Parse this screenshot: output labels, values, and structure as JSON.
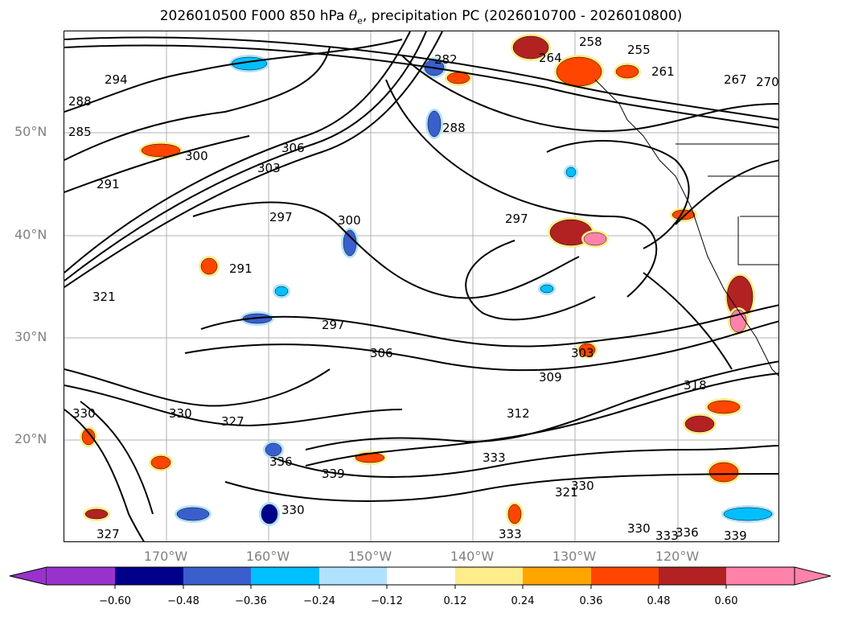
{
  "title": {
    "prefix": "2026010500 F000 850 hPa ",
    "symbol": "θ",
    "sub": "e",
    "suffix": ", precipitation PC (2026010700 - 2026010800)"
  },
  "lat_labels": [
    "50°N",
    "40°N",
    "30°N",
    "20°N"
  ],
  "lon_labels": [
    "170°W",
    "160°W",
    "150°W",
    "140°W",
    "130°W",
    "120°W"
  ],
  "colorbar": {
    "ticks": [
      "−0.60",
      "−0.48",
      "−0.36",
      "−0.24",
      "−0.12",
      "0.12",
      "0.24",
      "0.36",
      "0.48",
      "0.60"
    ],
    "colors": [
      "#9932cc",
      "#00008b",
      "#3a5fcd",
      "#00bfff",
      "#b0e2ff",
      "#ffffff",
      "#ffec8b",
      "#ffa500",
      "#ff4500",
      "#b22222",
      "#ff82ab"
    ]
  },
  "contour_labels": [
    "294",
    "288",
    "285",
    "291",
    "300",
    "303",
    "306",
    "297",
    "300",
    "291",
    "282",
    "288",
    "297",
    "258",
    "264",
    "255",
    "261",
    "267",
    "270",
    "321",
    "306",
    "297",
    "303",
    "309",
    "318",
    "312",
    "327",
    "330",
    "336",
    "339",
    "330",
    "327",
    "321",
    "333",
    "330",
    "333",
    "330",
    "333",
    "336",
    "339",
    "330"
  ]
}
